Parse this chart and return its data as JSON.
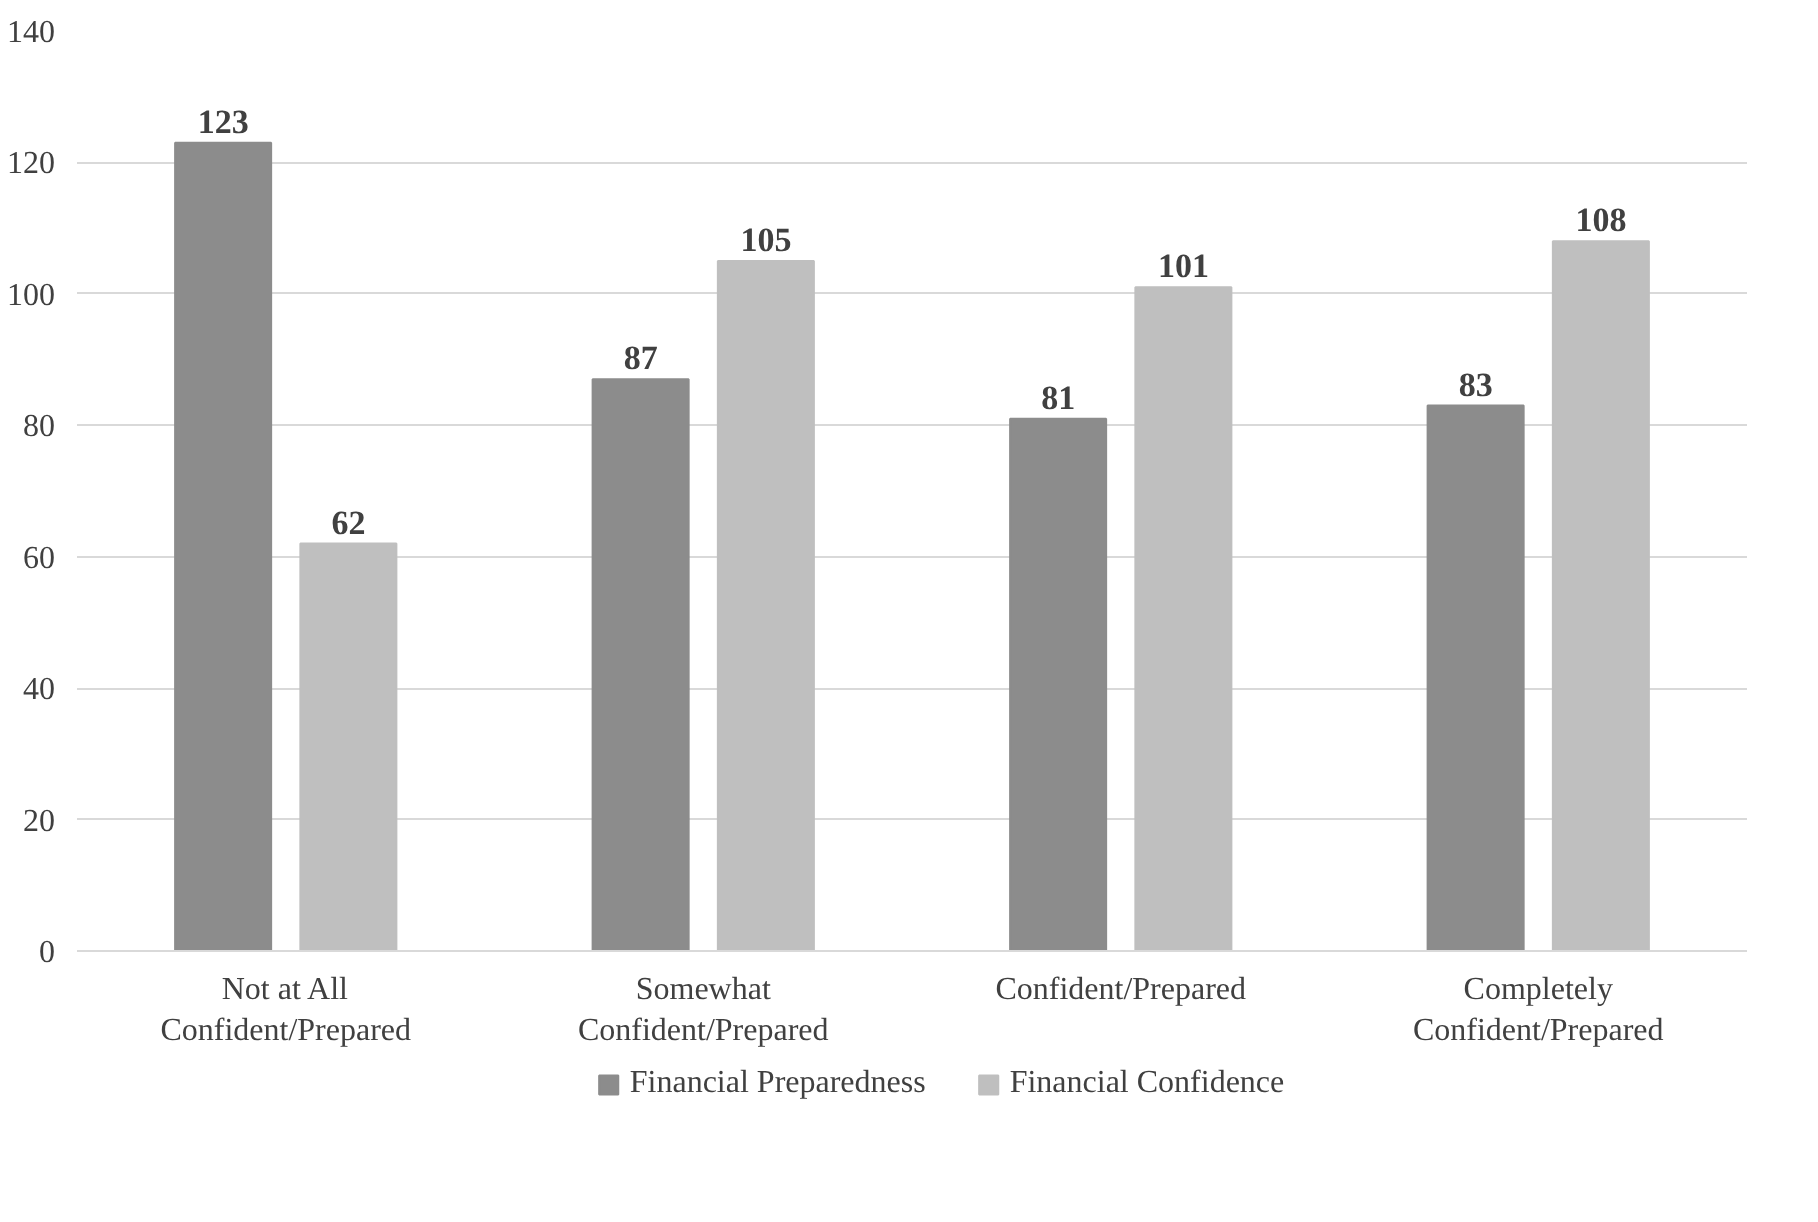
{
  "chart_data": {
    "type": "bar",
    "categories": [
      "Not at All Confident/Prepared",
      "Somewhat Confident/Prepared",
      "Confident/Prepared",
      "Completely Confident/Prepared"
    ],
    "series": [
      {
        "name": "Financial Preparedness",
        "color": "#8c8c8c",
        "values": [
          123,
          87,
          81,
          83
        ]
      },
      {
        "name": "Financial Confidence",
        "color": "#bfbfbf",
        "values": [
          62,
          105,
          101,
          108
        ]
      }
    ],
    "ylim": [
      0,
      140
    ],
    "yticks": [
      0,
      20,
      40,
      60,
      80,
      100,
      120,
      140
    ],
    "grid": "y",
    "legend": "bottom",
    "data_labels": true
  }
}
